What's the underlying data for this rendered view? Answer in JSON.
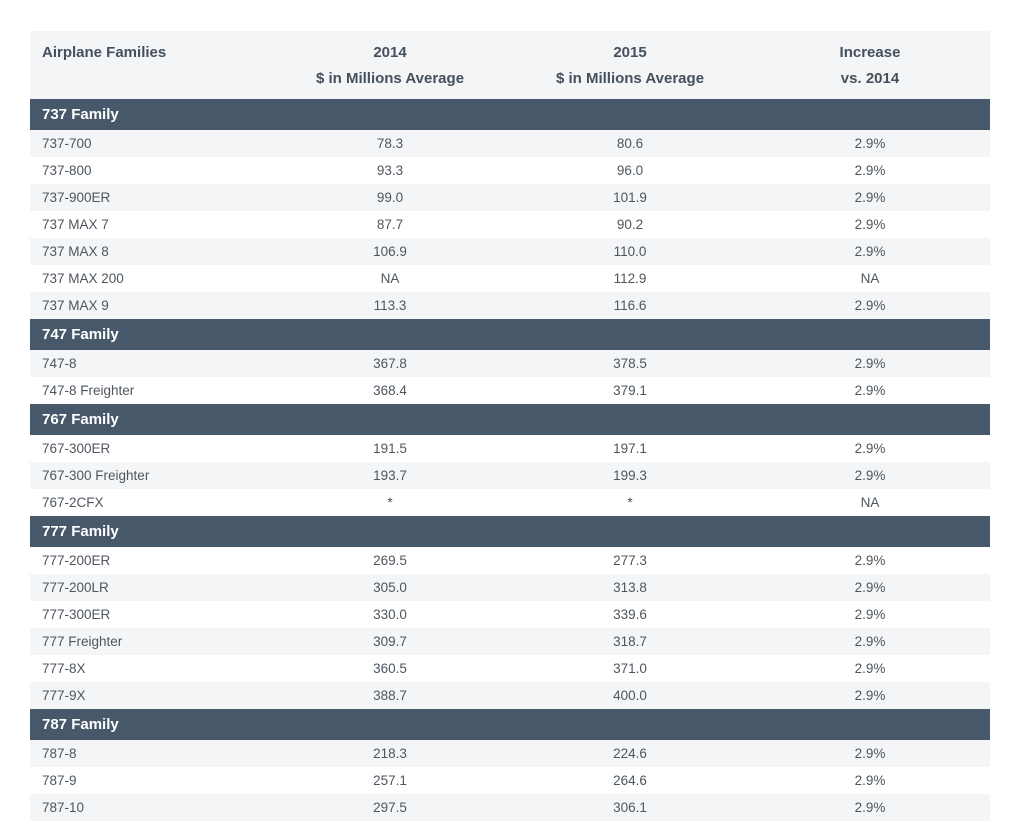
{
  "chart_data": {
    "type": "table",
    "header": {
      "col1": {
        "line1": "Airplane Families",
        "line2": ""
      },
      "col2": {
        "line1": "2014",
        "line2": "$ in Millions Average"
      },
      "col3": {
        "line1": "2015",
        "line2": "$ in Millions Average"
      },
      "col4": {
        "line1": "Increase",
        "line2": "vs. 2014"
      }
    },
    "sections": [
      {
        "family": "737 Family",
        "rows": [
          [
            "737-700",
            "78.3",
            "80.6",
            "2.9%"
          ],
          [
            "737-800",
            "93.3",
            "96.0",
            "2.9%"
          ],
          [
            "737-900ER",
            "99.0",
            "101.9",
            "2.9%"
          ],
          [
            "737 MAX 7",
            "87.7",
            "90.2",
            "2.9%"
          ],
          [
            "737 MAX 8",
            "106.9",
            "110.0",
            "2.9%"
          ],
          [
            "737 MAX 200",
            "NA",
            "112.9",
            "NA"
          ],
          [
            "737 MAX 9",
            "113.3",
            "116.6",
            "2.9%"
          ]
        ]
      },
      {
        "family": "747 Family",
        "rows": [
          [
            "747-8",
            "367.8",
            "378.5",
            "2.9%"
          ],
          [
            "747-8 Freighter",
            "368.4",
            "379.1",
            "2.9%"
          ]
        ]
      },
      {
        "family": "767 Family",
        "rows": [
          [
            "767-300ER",
            "191.5",
            "197.1",
            "2.9%"
          ],
          [
            "767-300 Freighter",
            "193.7",
            "199.3",
            "2.9%"
          ],
          [
            "767-2CFX",
            "*",
            "*",
            "NA"
          ]
        ]
      },
      {
        "family": "777 Family",
        "rows": [
          [
            "777-200ER",
            "269.5",
            "277.3",
            "2.9%"
          ],
          [
            "777-200LR",
            "305.0",
            "313.8",
            "2.9%"
          ],
          [
            "777-300ER",
            "330.0",
            "339.6",
            "2.9%"
          ],
          [
            "777 Freighter",
            "309.7",
            "318.7",
            "2.9%"
          ],
          [
            "777-8X",
            "360.5",
            "371.0",
            "2.9%"
          ],
          [
            "777-9X",
            "388.7",
            "400.0",
            "2.9%"
          ]
        ]
      },
      {
        "family": "787 Family",
        "rows": [
          [
            "787-8",
            "218.3",
            "224.6",
            "2.9%"
          ],
          [
            "787-9",
            "257.1",
            "264.6",
            "2.9%"
          ],
          [
            "787-10",
            "297.5",
            "306.1",
            "2.9%"
          ]
        ]
      }
    ],
    "colors": {
      "family_bar_bg": "#46586a",
      "family_bar_text": "#ffffff",
      "stripe_row_bg": "#f4f5f6",
      "header_bg": "#f4f5f6",
      "header_text": "#44505c",
      "row_text": "#4d565f",
      "page_bg": "#ffffff"
    }
  }
}
